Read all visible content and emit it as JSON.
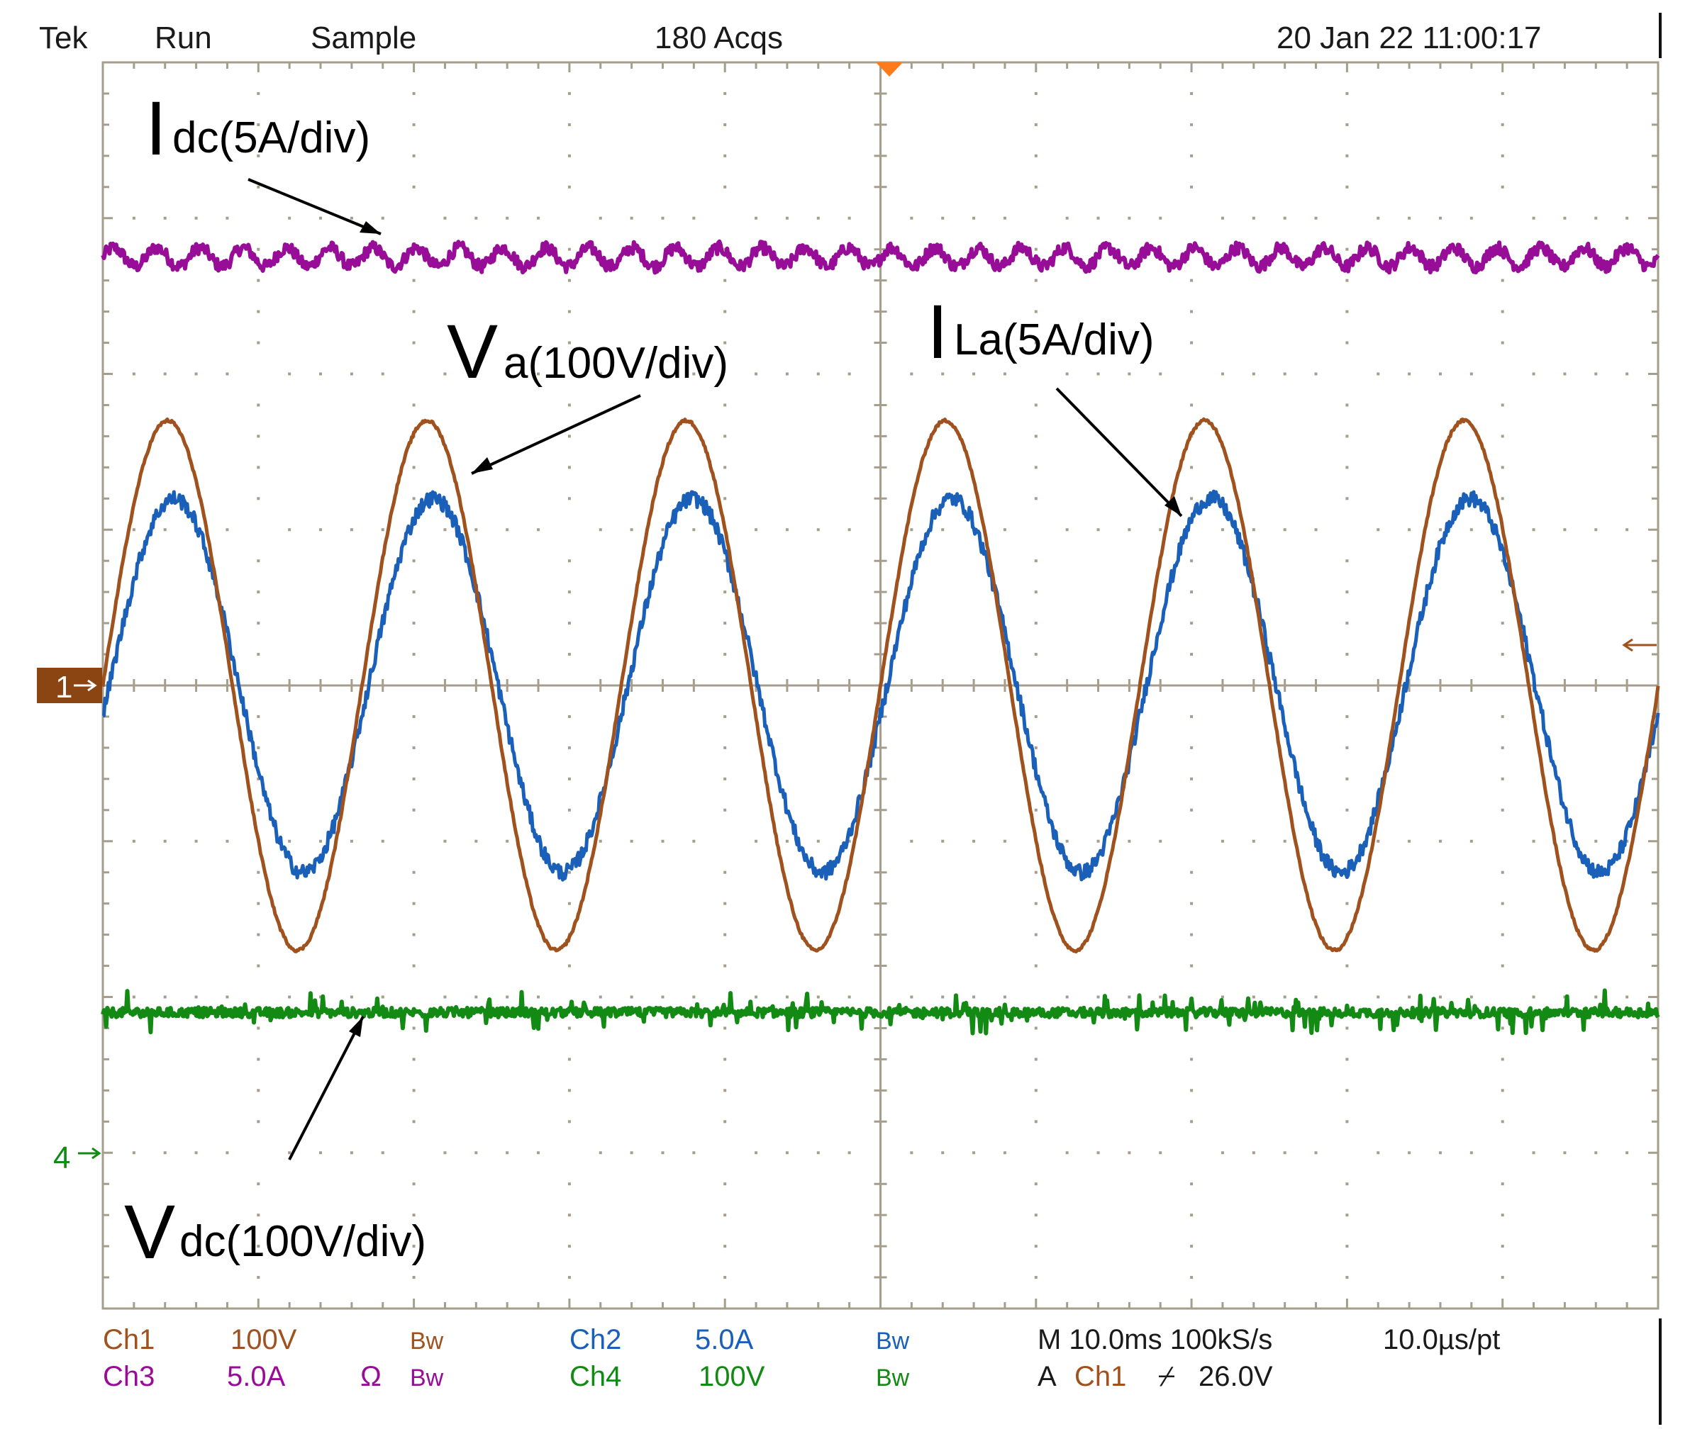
{
  "header": {
    "brand": "Tek",
    "state": "Run",
    "mode": "Sample",
    "acquisitions": "180 Acqs",
    "datetime": "20 Jan 22 11:00:17"
  },
  "annotations": {
    "idc": {
      "main": "I",
      "sub": "dc(5A/div)"
    },
    "va": {
      "main": "V",
      "sub": "a(100V/div)"
    },
    "ila": {
      "main": "I",
      "sub": "La(5A/div)"
    },
    "vdc": {
      "main": "V",
      "sub": "dc(100V/div)"
    }
  },
  "markers": {
    "ch1": "1",
    "ch4": "4"
  },
  "footer": {
    "ch1": {
      "label": "Ch1",
      "scale": "100V",
      "bw": "Bw"
    },
    "ch2": {
      "label": "Ch2",
      "scale": "5.0A",
      "bw": "Bw"
    },
    "ch3": {
      "label": "Ch3",
      "scale": "5.0A",
      "coupling": "Ω",
      "bw": "Bw"
    },
    "ch4": {
      "label": "Ch4",
      "scale": "100V",
      "bw": "Bw"
    },
    "timebase": "M 10.0ms 100kS/s",
    "resolution": "10.0µs/pt",
    "trigger": {
      "prefix": "A",
      "source": "Ch1",
      "slope": "⌿",
      "level": "26.0V"
    }
  },
  "colors": {
    "ch1": "#a0521e",
    "ch2": "#1a5fb8",
    "ch3": "#980d98",
    "ch4": "#138a13",
    "grid": "#a69e8c",
    "trigger": "#ff7a1a"
  },
  "chart_data": {
    "type": "line",
    "grid": true,
    "x_divisions": 10,
    "y_divisions": 8,
    "xlim": [
      0,
      100
    ],
    "xunit": "ms",
    "series": [
      {
        "name": "Va",
        "channel": "Ch1",
        "scale_per_div": 100,
        "unit": "V",
        "kind": "sine",
        "amplitude_div": 1.7,
        "offset_div": 0,
        "period_ms": 16.67,
        "phase_deg": 0,
        "noise_div": 0.01
      },
      {
        "name": "ILa",
        "channel": "Ch2",
        "scale_per_div": 5,
        "unit": "A",
        "kind": "sine",
        "amplitude_div": 1.2,
        "offset_div": 0,
        "period_ms": 16.67,
        "phase_deg": -9,
        "noise_div": 0.05
      },
      {
        "name": "Idc",
        "channel": "Ch3",
        "scale_per_div": 5,
        "unit": "A",
        "kind": "ripple",
        "level_div": 2.75,
        "ripple_div": 0.06,
        "ripple_period_ms": 2.78,
        "noise_div": 0.04
      },
      {
        "name": "Vdc",
        "channel": "Ch4",
        "scale_per_div": 100,
        "unit": "V",
        "kind": "flat",
        "level_div": -2.1,
        "noise_div": 0.03,
        "spike_div": 0.12
      }
    ]
  }
}
